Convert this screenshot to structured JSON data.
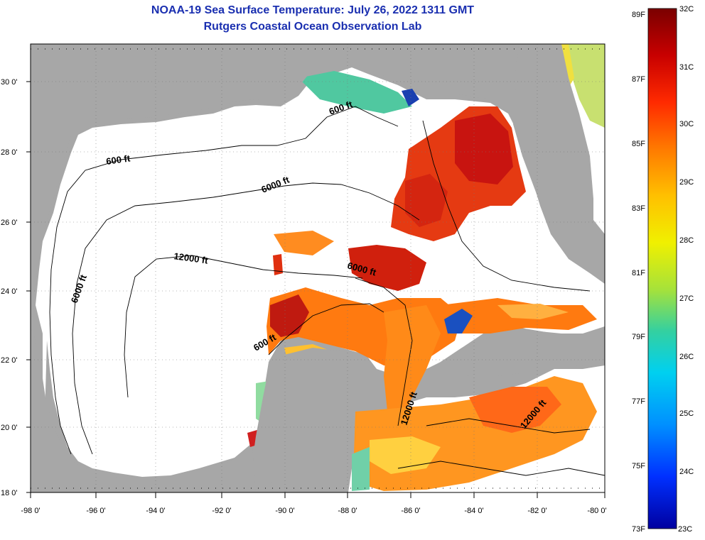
{
  "header": {
    "title": "NOAA-19 Sea Surface Temperature:  July 26, 2022 1311 GMT",
    "subtitle": "Rutgers Coastal Ocean Observation Lab"
  },
  "axes": {
    "lat_ticks": [
      "30 0'",
      "28 0'",
      "26 0'",
      "24 0'",
      "22 0'",
      "20 0'",
      "18 0'"
    ],
    "lon_ticks": [
      "-98 0'",
      "-96 0'",
      "-94 0'",
      "-92 0'",
      "-90 0'",
      "-88 0'",
      "-86 0'",
      "-84 0'",
      "-82 0'",
      "-80 0'"
    ]
  },
  "depth_contour_labels": [
    "600 ft",
    "600 ft",
    "600 ft",
    "6000 ft",
    "6000 ft",
    "6000 ft",
    "12000 ft",
    "12000 ft",
    "12000 ft"
  ],
  "colorbar": {
    "fahrenheit_labels": [
      "89F",
      "87F",
      "85F",
      "83F",
      "81F",
      "79F",
      "77F",
      "75F",
      "73F"
    ],
    "celsius_labels": [
      "32C",
      "31C",
      "30C",
      "29C",
      "28C",
      "27C",
      "26C",
      "25C",
      "24C",
      "23C"
    ],
    "gradient_colors": [
      "#7a0000",
      "#c80000",
      "#ff2a00",
      "#ff7a00",
      "#ffc000",
      "#f0f000",
      "#a6e23a",
      "#34d0a0",
      "#00d0f0",
      "#0090ff",
      "#0030ff",
      "#0000a0"
    ]
  },
  "colors": {
    "land": "#a7a7a7",
    "water_no_data": "#ffffff",
    "title": "#1a2fb0"
  }
}
